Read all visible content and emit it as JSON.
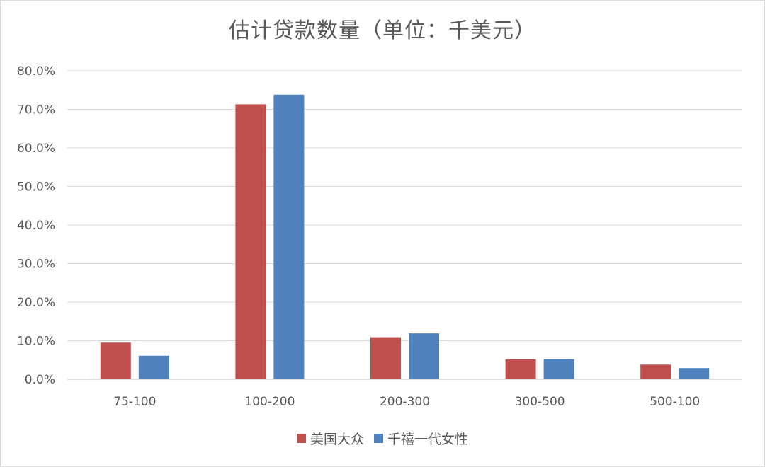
{
  "chart_data": {
    "type": "bar",
    "title": "估计贷款数量（单位：千美元）",
    "categories": [
      "75-100",
      "100-200",
      "200-300",
      "300-500",
      "500-100"
    ],
    "series": [
      {
        "name": "美国大众",
        "color": "#c0504d",
        "values": [
          9.5,
          71.3,
          10.9,
          5.2,
          3.8
        ]
      },
      {
        "name": "千禧一代女性",
        "color": "#4f81bd",
        "values": [
          6.1,
          73.8,
          11.9,
          5.2,
          2.9
        ]
      }
    ],
    "yticks": [
      "0.0%",
      "10.0%",
      "20.0%",
      "30.0%",
      "40.0%",
      "50.0%",
      "60.0%",
      "70.0%",
      "80.0%"
    ],
    "ylim": [
      0,
      80
    ],
    "xlabel": "",
    "ylabel": "",
    "grid": true,
    "legend_position": "bottom"
  }
}
